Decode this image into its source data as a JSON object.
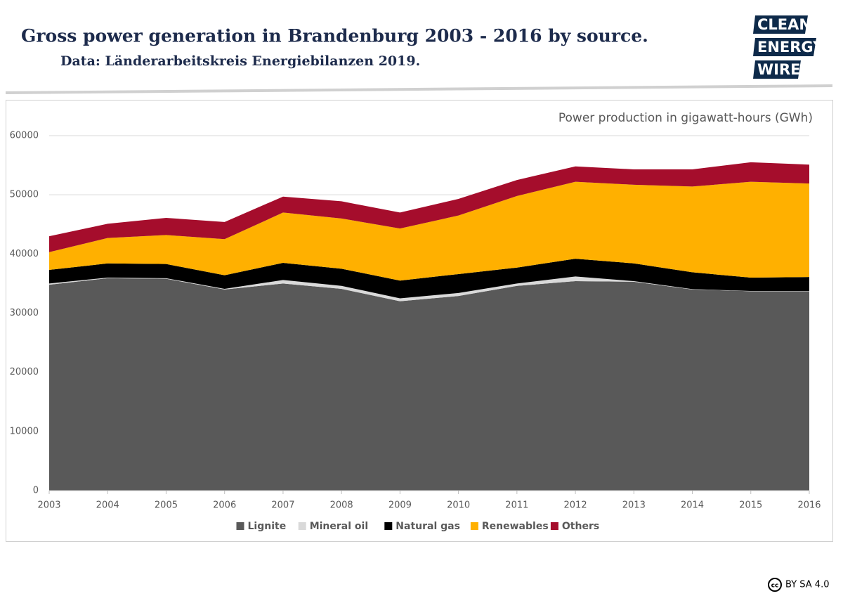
{
  "header": {
    "title": "Gross power generation in Brandenburg 2003 - 2016 by source.",
    "subtitle": "Data: Länderarbeitskreis Energiebilanzen 2019.",
    "logo": [
      "CLEAN",
      "ENERGY",
      "WIRE"
    ]
  },
  "license": {
    "icon": "cc",
    "text": "BY SA 4.0"
  },
  "chart_data": {
    "type": "stacked-area",
    "unit_label": "Power production in gigawatt-hours (GWh)",
    "x": [
      2003,
      2004,
      2005,
      2006,
      2007,
      2008,
      2009,
      2010,
      2011,
      2012,
      2013,
      2014,
      2015,
      2016
    ],
    "xlim": [
      2003,
      2016
    ],
    "xticks": [
      2003,
      2004,
      2005,
      2006,
      2007,
      2008,
      2009,
      2010,
      2011,
      2012,
      2013,
      2014,
      2015,
      2016
    ],
    "ylim": [
      0,
      60000
    ],
    "yticks": [
      0,
      10000,
      20000,
      30000,
      40000,
      50000,
      60000
    ],
    "grid": true,
    "series": [
      {
        "name": "Lignite",
        "color": "#595959",
        "values": [
          34800,
          35900,
          35800,
          34000,
          35000,
          34100,
          32000,
          32900,
          34600,
          35400,
          35300,
          34000,
          33700,
          33700
        ]
      },
      {
        "name": "Mineral oil",
        "color": "#d9d9d9",
        "values": [
          200,
          100,
          100,
          100,
          600,
          500,
          500,
          500,
          400,
          800,
          100,
          50,
          50,
          50
        ]
      },
      {
        "name": "Natural gas",
        "color": "#000000",
        "values": [
          2300,
          2400,
          2400,
          2300,
          2900,
          2900,
          3000,
          3200,
          2700,
          3000,
          3000,
          2850,
          2250,
          2350
        ]
      },
      {
        "name": "Renewables",
        "color": "#ffb000",
        "values": [
          3000,
          4300,
          4900,
          6100,
          8500,
          8500,
          8800,
          9900,
          12100,
          13000,
          13300,
          14500,
          16200,
          15800
        ]
      },
      {
        "name": "Others",
        "color": "#a50d2c",
        "values": [
          2700,
          2400,
          2900,
          2900,
          2700,
          2900,
          2700,
          2800,
          2700,
          2600,
          2600,
          2900,
          3300,
          3200
        ]
      }
    ]
  }
}
